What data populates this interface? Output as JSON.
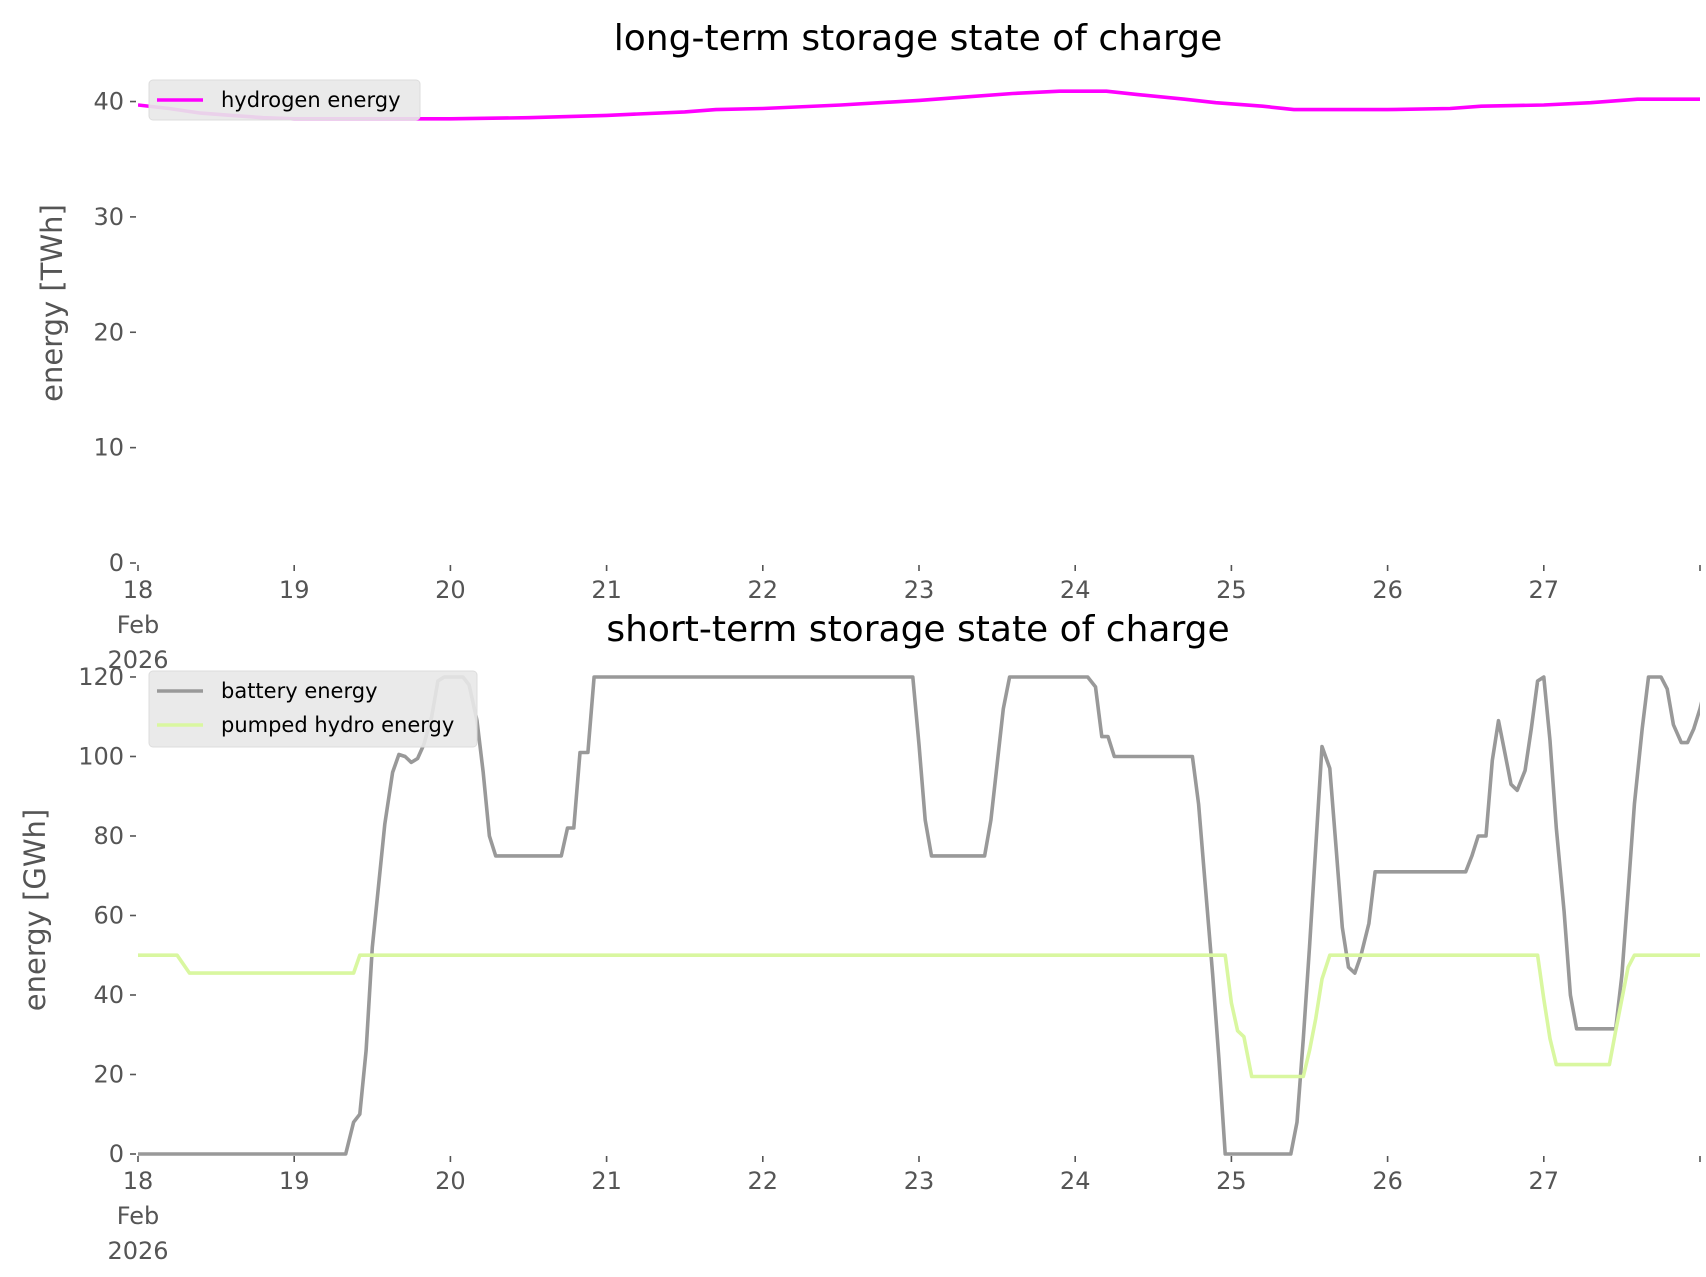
{
  "chart_data": [
    {
      "type": "line",
      "title": "long-term storage state of charge",
      "ylabel": "energy [TWh]",
      "xlabel": "",
      "ylim": [
        0,
        41
      ],
      "yticks": [
        0,
        10,
        20,
        30,
        40
      ],
      "xlim": [
        18,
        28
      ],
      "xticks": [
        {
          "value": 18,
          "lines": [
            "18",
            "Feb",
            "2026"
          ]
        },
        {
          "value": 19,
          "lines": [
            "19"
          ]
        },
        {
          "value": 20,
          "lines": [
            "20"
          ]
        },
        {
          "value": 21,
          "lines": [
            "21"
          ]
        },
        {
          "value": 22,
          "lines": [
            "22"
          ]
        },
        {
          "value": 23,
          "lines": [
            "23"
          ]
        },
        {
          "value": 24,
          "lines": [
            "24"
          ]
        },
        {
          "value": 25,
          "lines": [
            "25"
          ]
        },
        {
          "value": 26,
          "lines": [
            "26"
          ]
        },
        {
          "value": 27,
          "lines": [
            "27"
          ]
        }
      ],
      "legend_position": "top-left",
      "grid": false,
      "series": [
        {
          "name": "hydrogen energy",
          "color": "#ff00ff",
          "points": [
            [
              18.0,
              39.7
            ],
            [
              18.2,
              39.4
            ],
            [
              18.4,
              39.0
            ],
            [
              18.6,
              38.8
            ],
            [
              18.8,
              38.6
            ],
            [
              19.0,
              38.5
            ],
            [
              19.5,
              38.5
            ],
            [
              20.0,
              38.5
            ],
            [
              20.5,
              38.6
            ],
            [
              21.0,
              38.8
            ],
            [
              21.5,
              39.1
            ],
            [
              21.7,
              39.3
            ],
            [
              22.0,
              39.4
            ],
            [
              22.5,
              39.7
            ],
            [
              23.0,
              40.1
            ],
            [
              23.3,
              40.4
            ],
            [
              23.6,
              40.7
            ],
            [
              23.9,
              40.9
            ],
            [
              24.2,
              40.9
            ],
            [
              24.4,
              40.6
            ],
            [
              24.7,
              40.2
            ],
            [
              24.9,
              39.9
            ],
            [
              25.2,
              39.6
            ],
            [
              25.4,
              39.3
            ],
            [
              25.6,
              39.3
            ],
            [
              26.0,
              39.3
            ],
            [
              26.4,
              39.4
            ],
            [
              26.6,
              39.6
            ],
            [
              27.0,
              39.7
            ],
            [
              27.3,
              39.9
            ],
            [
              27.6,
              40.2
            ],
            [
              27.8,
              40.2
            ],
            [
              28.0,
              40.2
            ]
          ]
        }
      ]
    },
    {
      "type": "line",
      "title": "short-term storage state of charge",
      "ylabel": "energy [GWh]",
      "xlabel": "",
      "ylim": [
        0,
        121
      ],
      "yticks": [
        0,
        20,
        40,
        60,
        80,
        100,
        120
      ],
      "xlim": [
        18,
        28
      ],
      "xticks": [
        {
          "value": 18,
          "lines": [
            "18",
            "Feb",
            "2026"
          ]
        },
        {
          "value": 19,
          "lines": [
            "19"
          ]
        },
        {
          "value": 20,
          "lines": [
            "20"
          ]
        },
        {
          "value": 21,
          "lines": [
            "21"
          ]
        },
        {
          "value": 22,
          "lines": [
            "22"
          ]
        },
        {
          "value": 23,
          "lines": [
            "23"
          ]
        },
        {
          "value": 24,
          "lines": [
            "24"
          ]
        },
        {
          "value": 25,
          "lines": [
            "25"
          ]
        },
        {
          "value": 26,
          "lines": [
            "26"
          ]
        },
        {
          "value": 27,
          "lines": [
            "27"
          ]
        }
      ],
      "legend_position": "top-left",
      "grid": false,
      "series": [
        {
          "name": "battery energy",
          "color": "#999999",
          "points": [
            [
              18.0,
              0
            ],
            [
              19.33,
              0
            ],
            [
              19.38,
              8
            ],
            [
              19.42,
              10
            ],
            [
              19.46,
              26
            ],
            [
              19.5,
              52
            ],
            [
              19.58,
              83
            ],
            [
              19.63,
              96
            ],
            [
              19.67,
              100.5
            ],
            [
              19.71,
              100
            ],
            [
              19.75,
              98.5
            ],
            [
              19.79,
              99.5
            ],
            [
              19.83,
              103
            ],
            [
              19.88,
              110
            ],
            [
              19.92,
              119
            ],
            [
              19.96,
              120
            ],
            [
              20.08,
              120
            ],
            [
              20.12,
              118
            ],
            [
              20.17,
              109
            ],
            [
              20.21,
              96
            ],
            [
              20.25,
              80
            ],
            [
              20.29,
              75
            ],
            [
              20.71,
              75
            ],
            [
              20.75,
              82
            ],
            [
              20.79,
              82
            ],
            [
              20.83,
              101
            ],
            [
              20.88,
              101
            ],
            [
              20.92,
              120
            ],
            [
              22.96,
              120
            ],
            [
              23.0,
              103
            ],
            [
              23.04,
              84
            ],
            [
              23.08,
              75
            ],
            [
              23.42,
              75
            ],
            [
              23.46,
              84
            ],
            [
              23.5,
              98
            ],
            [
              23.54,
              112
            ],
            [
              23.58,
              120
            ],
            [
              24.08,
              120
            ],
            [
              24.13,
              117.5
            ],
            [
              24.17,
              105
            ],
            [
              24.21,
              105
            ],
            [
              24.25,
              100
            ],
            [
              24.75,
              100
            ],
            [
              24.79,
              88
            ],
            [
              24.83,
              69
            ],
            [
              24.88,
              45
            ],
            [
              24.92,
              24
            ],
            [
              24.96,
              0
            ],
            [
              25.38,
              0
            ],
            [
              25.42,
              8
            ],
            [
              25.46,
              29
            ],
            [
              25.5,
              52
            ],
            [
              25.54,
              77
            ],
            [
              25.58,
              102.5
            ],
            [
              25.63,
              97
            ],
            [
              25.67,
              77
            ],
            [
              25.71,
              57
            ],
            [
              25.75,
              47
            ],
            [
              25.79,
              45.5
            ],
            [
              25.83,
              50
            ],
            [
              25.88,
              58
            ],
            [
              25.92,
              71
            ],
            [
              26.46,
              71
            ],
            [
              26.5,
              71
            ],
            [
              26.54,
              75
            ],
            [
              26.58,
              80
            ],
            [
              26.63,
              80
            ],
            [
              26.67,
              99
            ],
            [
              26.71,
              109
            ],
            [
              26.75,
              101
            ],
            [
              26.79,
              93
            ],
            [
              26.83,
              91.5
            ],
            [
              26.88,
              96.5
            ],
            [
              26.92,
              107
            ],
            [
              26.96,
              119
            ],
            [
              27.0,
              120
            ],
            [
              27.04,
              104
            ],
            [
              27.08,
              82
            ],
            [
              27.13,
              61
            ],
            [
              27.17,
              40
            ],
            [
              27.21,
              31.5
            ],
            [
              27.46,
              31.5
            ],
            [
              27.5,
              45
            ],
            [
              27.54,
              66
            ],
            [
              27.58,
              88
            ],
            [
              27.63,
              107
            ],
            [
              27.67,
              120
            ],
            [
              27.75,
              120
            ],
            [
              27.79,
              117
            ],
            [
              27.83,
              108
            ],
            [
              27.88,
              103.5
            ],
            [
              27.92,
              103.5
            ],
            [
              27.96,
              107
            ],
            [
              28.0,
              112
            ],
            [
              28.05,
              120
            ]
          ]
        },
        {
          "name": "pumped hydro energy",
          "color": "#d9f7a0",
          "points": [
            [
              18.0,
              50
            ],
            [
              18.25,
              50
            ],
            [
              18.33,
              45.5
            ],
            [
              19.38,
              45.5
            ],
            [
              19.42,
              50
            ],
            [
              24.96,
              50
            ],
            [
              25.0,
              38
            ],
            [
              25.04,
              31
            ],
            [
              25.08,
              29.5
            ],
            [
              25.13,
              19.5
            ],
            [
              25.46,
              19.5
            ],
            [
              25.5,
              26
            ],
            [
              25.54,
              34
            ],
            [
              25.58,
              44
            ],
            [
              25.63,
              50
            ],
            [
              26.96,
              50
            ],
            [
              27.0,
              39
            ],
            [
              27.04,
              29
            ],
            [
              27.08,
              22.5
            ],
            [
              27.42,
              22.5
            ],
            [
              27.46,
              31
            ],
            [
              27.5,
              39
            ],
            [
              27.54,
              47
            ],
            [
              27.58,
              50
            ],
            [
              28.05,
              50
            ]
          ]
        }
      ]
    }
  ]
}
